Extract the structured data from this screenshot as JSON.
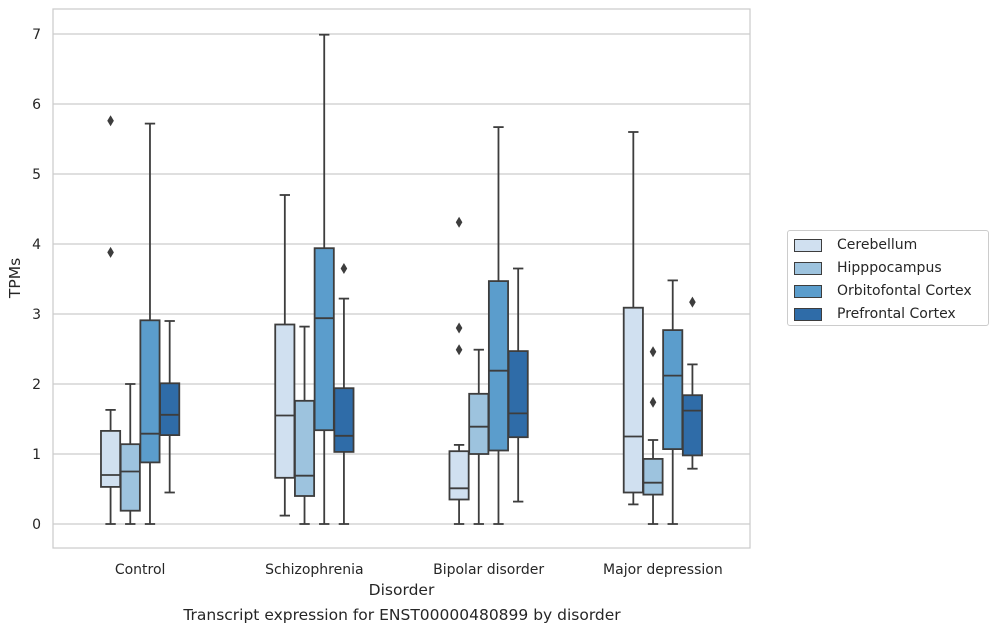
{
  "caption": "Transcript expression for ENST00000480899 by disorder",
  "chart_data": {
    "type": "box",
    "xlabel": "Disorder",
    "ylabel": "TPMs",
    "ylim": [
      -0.34,
      7.35
    ],
    "yticks": [
      0,
      1,
      2,
      3,
      4,
      5,
      6,
      7
    ],
    "grid": "horizontal",
    "legend_position": "right",
    "categories": [
      "Control",
      "Schizophrenia",
      "Bipolar disorder",
      "Major depression"
    ],
    "series": [
      {
        "name": "Cerebellum",
        "color": "#d0e0f0",
        "boxes": [
          {
            "whisker_low": 0.0,
            "q1": 0.53,
            "median": 0.7,
            "q3": 1.33,
            "whisker_high": 1.63,
            "outliers": [
              3.88,
              5.76
            ]
          },
          {
            "whisker_low": 0.12,
            "q1": 0.66,
            "median": 1.55,
            "q3": 2.85,
            "whisker_high": 4.7,
            "outliers": []
          },
          {
            "whisker_low": 0.0,
            "q1": 0.35,
            "median": 0.51,
            "q3": 1.04,
            "whisker_high": 1.13,
            "outliers": [
              2.49,
              2.8,
              4.31
            ]
          },
          {
            "whisker_low": 0.28,
            "q1": 0.45,
            "median": 1.25,
            "q3": 3.09,
            "whisker_high": 5.6,
            "outliers": []
          }
        ]
      },
      {
        "name": "Hipppocampus",
        "color": "#9dc3de",
        "boxes": [
          {
            "whisker_low": 0.0,
            "q1": 0.19,
            "median": 0.75,
            "q3": 1.14,
            "whisker_high": 2.0,
            "outliers": []
          },
          {
            "whisker_low": 0.0,
            "q1": 0.4,
            "median": 0.69,
            "q3": 1.76,
            "whisker_high": 2.82,
            "outliers": []
          },
          {
            "whisker_low": 0.0,
            "q1": 1.0,
            "median": 1.39,
            "q3": 1.86,
            "whisker_high": 2.49,
            "outliers": []
          },
          {
            "whisker_low": 0.0,
            "q1": 0.42,
            "median": 0.59,
            "q3": 0.93,
            "whisker_high": 1.2,
            "outliers": [
              1.74,
              2.46
            ]
          }
        ]
      },
      {
        "name": "Orbitofontal Cortex",
        "color": "#5b9dcc",
        "boxes": [
          {
            "whisker_low": 0.0,
            "q1": 0.88,
            "median": 1.29,
            "q3": 2.91,
            "whisker_high": 5.72,
            "outliers": []
          },
          {
            "whisker_low": 0.0,
            "q1": 1.34,
            "median": 2.94,
            "q3": 3.94,
            "whisker_high": 6.99,
            "outliers": []
          },
          {
            "whisker_low": 0.0,
            "q1": 1.05,
            "median": 2.19,
            "q3": 3.47,
            "whisker_high": 5.67,
            "outliers": []
          },
          {
            "whisker_low": 0.0,
            "q1": 1.07,
            "median": 2.12,
            "q3": 2.77,
            "whisker_high": 3.48,
            "outliers": []
          }
        ]
      },
      {
        "name": "Prefrontal Cortex",
        "color": "#2f6ca8",
        "boxes": [
          {
            "whisker_low": 0.45,
            "q1": 1.27,
            "median": 1.56,
            "q3": 2.01,
            "whisker_high": 2.9,
            "outliers": []
          },
          {
            "whisker_low": 0.0,
            "q1": 1.03,
            "median": 1.26,
            "q3": 1.94,
            "whisker_high": 3.22,
            "outliers": [
              3.65
            ]
          },
          {
            "whisker_low": 0.32,
            "q1": 1.24,
            "median": 1.58,
            "q3": 2.47,
            "whisker_high": 3.65,
            "outliers": []
          },
          {
            "whisker_low": 0.79,
            "q1": 0.98,
            "median": 1.62,
            "q3": 1.84,
            "whisker_high": 2.28,
            "outliers": [
              3.17
            ]
          }
        ]
      }
    ]
  }
}
